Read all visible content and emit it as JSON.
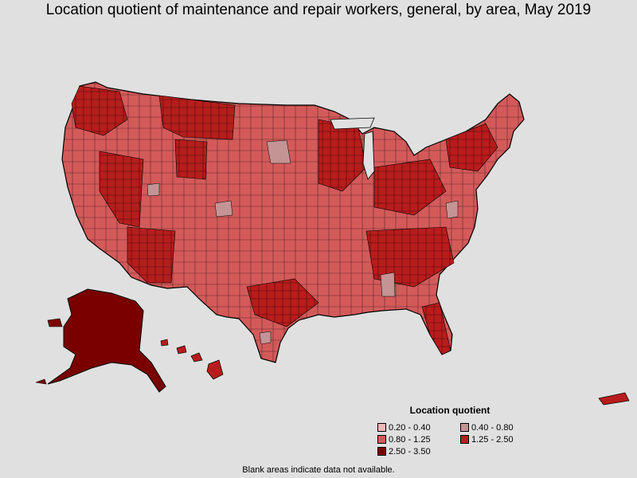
{
  "title": "Location quotient of maintenance and repair workers, general, by area, May 2019",
  "legend": {
    "title": "Location quotient",
    "items": [
      {
        "label": "0.20 - 0.40",
        "color": "#f4b6b6"
      },
      {
        "label": "0.40 - 0.80",
        "color": "#c49494"
      },
      {
        "label": "0.80 - 1.25",
        "color": "#d45a5a"
      },
      {
        "label": "1.25 - 2.50",
        "color": "#b81c1c"
      },
      {
        "label": "2.50 - 3.50",
        "color": "#7a0000"
      }
    ]
  },
  "footnote": "Blank areas indicate data not available.",
  "colors": {
    "background": "#e0e0e0",
    "border": "#000000"
  }
}
